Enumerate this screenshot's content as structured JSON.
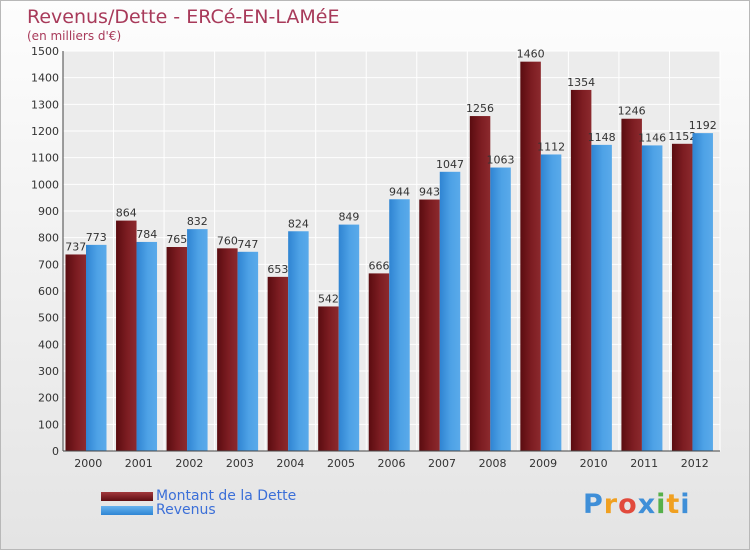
{
  "chart_data": {
    "type": "bar",
    "title": "Revenus/Dette - ERCé-EN-LAMéE",
    "subtitle": "(en milliers d'€)",
    "xlabel": "",
    "ylabel": "",
    "ylim": [
      0,
      1500
    ],
    "yticks": [
      0,
      100,
      200,
      300,
      400,
      500,
      600,
      700,
      800,
      900,
      1000,
      1100,
      1200,
      1300,
      1400,
      1500
    ],
    "grid": true,
    "legend_position": "bottom-left",
    "categories": [
      "2000",
      "2001",
      "2002",
      "2003",
      "2004",
      "2005",
      "2006",
      "2007",
      "2008",
      "2009",
      "2010",
      "2011",
      "2012"
    ],
    "series": [
      {
        "name": "Montant de la Dette",
        "color": "#7a1a1e",
        "values": [
          737,
          864,
          765,
          760,
          653,
          542,
          666,
          943,
          1256,
          1460,
          1354,
          1246,
          1152
        ]
      },
      {
        "name": "Revenus",
        "color": "#3f96e0",
        "values": [
          773,
          784,
          832,
          747,
          824,
          849,
          944,
          1047,
          1063,
          1112,
          1148,
          1146,
          1192
        ]
      }
    ]
  },
  "brand": {
    "text": "Proxiti",
    "letters": [
      {
        "ch": "P",
        "color": "#3f8fd8"
      },
      {
        "ch": "r",
        "color": "#f0a020"
      },
      {
        "ch": "o",
        "color": "#e24a3c"
      },
      {
        "ch": "x",
        "color": "#3f8fd8"
      },
      {
        "ch": "i",
        "color": "#56b04a"
      },
      {
        "ch": "t",
        "color": "#f0a020"
      },
      {
        "ch": "i",
        "color": "#3f8fd8"
      }
    ]
  }
}
